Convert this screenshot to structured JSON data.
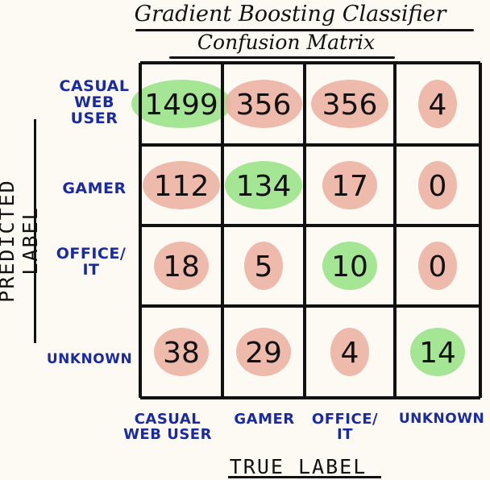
{
  "chart_data": {
    "type": "heatmap",
    "title": "Gradient Boosting Classifier",
    "subtitle": "Confusion Matrix",
    "xlabel": "TRUE LABEL",
    "ylabel": "PREDICTED LABEL",
    "row_labels": [
      "CASUAL WEB USER",
      "GAMER",
      "OFFICE/ IT",
      "UNKNOWN"
    ],
    "col_labels": [
      "CASUAL WEB USER",
      "GAMER",
      "OFFICE/ IT",
      "UNKNOWN"
    ],
    "values": [
      [
        1499,
        356,
        356,
        4
      ],
      [
        112,
        134,
        17,
        0
      ],
      [
        18,
        5,
        10,
        0
      ],
      [
        38,
        29,
        4,
        14
      ]
    ],
    "colors": {
      "correct": "#9ae38a",
      "incorrect": "#ebb3a3",
      "label_text": "#1a2aa0",
      "grid": "#111111"
    }
  }
}
